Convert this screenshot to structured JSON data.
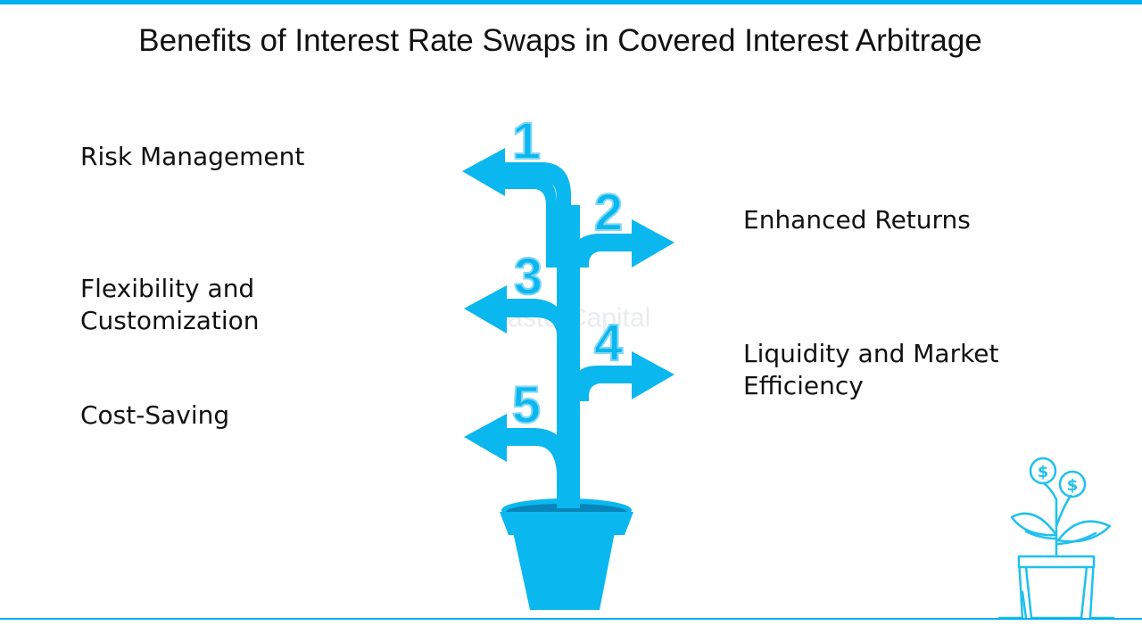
{
  "title": "Benefits of Interest Rate Swaps in Covered Interest Arbitrage",
  "benefits": [
    {
      "number": "1",
      "label": "Risk Management"
    },
    {
      "number": "2",
      "label": "Enhanced Returns"
    },
    {
      "number": "3",
      "label": "Flexibility and Customization"
    },
    {
      "number": "4",
      "label": "Liquidity and Market Efficiency"
    },
    {
      "number": "5",
      "label": "Cost-Saving"
    }
  ],
  "watermark": "FasterCapital",
  "colors": {
    "accent": "#00b0f0",
    "plant": "#0ab7ee",
    "pot_rim": "#0784b8",
    "number_outline": "#7fd7f7"
  },
  "icons": {
    "decoration": "money-plant-icon"
  }
}
